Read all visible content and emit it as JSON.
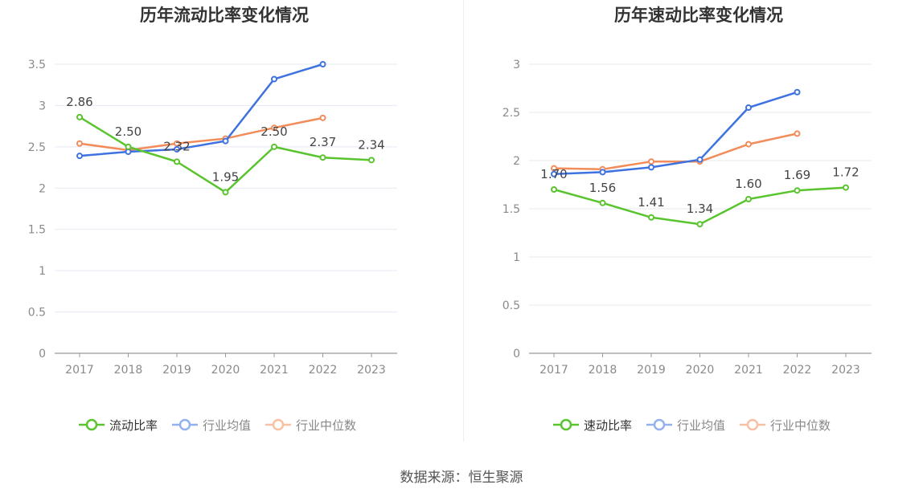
{
  "chart_data": [
    {
      "type": "line",
      "title": "历年流动比率变化情况",
      "categories": [
        "2017",
        "2018",
        "2019",
        "2020",
        "2021",
        "2022",
        "2023"
      ],
      "ylim": [
        0,
        3.5
      ],
      "yticks": [
        "0",
        "0.5",
        "1",
        "1.5",
        "2",
        "2.5",
        "3",
        "3.5"
      ],
      "grid": true,
      "legend_position": "bottom",
      "series": [
        {
          "name": "流动比率",
          "color": "#5ac42f",
          "values": [
            2.86,
            2.5,
            2.32,
            1.95,
            2.5,
            2.37,
            2.34
          ],
          "labels": [
            "2.86",
            "2.50",
            "2.32",
            "1.95",
            "2.50",
            "2.37",
            "2.34"
          ]
        },
        {
          "name": "行业均值",
          "color": "#3d72e0",
          "values": [
            2.39,
            2.44,
            2.47,
            2.57,
            3.32,
            3.5,
            null
          ]
        },
        {
          "name": "行业中位数",
          "color": "#f28c5a",
          "values": [
            2.54,
            2.46,
            2.54,
            2.6,
            2.73,
            2.85,
            null
          ]
        }
      ]
    },
    {
      "type": "line",
      "title": "历年速动比率变化情况",
      "categories": [
        "2017",
        "2018",
        "2019",
        "2020",
        "2021",
        "2022",
        "2023"
      ],
      "ylim": [
        0,
        3
      ],
      "yticks": [
        "0",
        "0.5",
        "1",
        "1.5",
        "2",
        "2.5",
        "3"
      ],
      "grid": true,
      "legend_position": "bottom",
      "series": [
        {
          "name": "速动比率",
          "color": "#5ac42f",
          "values": [
            1.7,
            1.56,
            1.41,
            1.34,
            1.6,
            1.69,
            1.72
          ],
          "labels": [
            "1.70",
            "1.56",
            "1.41",
            "1.34",
            "1.60",
            "1.69",
            "1.72"
          ]
        },
        {
          "name": "行业均值",
          "color": "#3d72e0",
          "values": [
            1.86,
            1.88,
            1.93,
            2.01,
            2.55,
            2.71,
            null
          ]
        },
        {
          "name": "行业中位数",
          "color": "#f28c5a",
          "values": [
            1.92,
            1.91,
            1.99,
            1.99,
            2.17,
            2.28,
            null
          ]
        }
      ]
    }
  ],
  "footer": {
    "source": "数据来源：恒生聚源"
  }
}
